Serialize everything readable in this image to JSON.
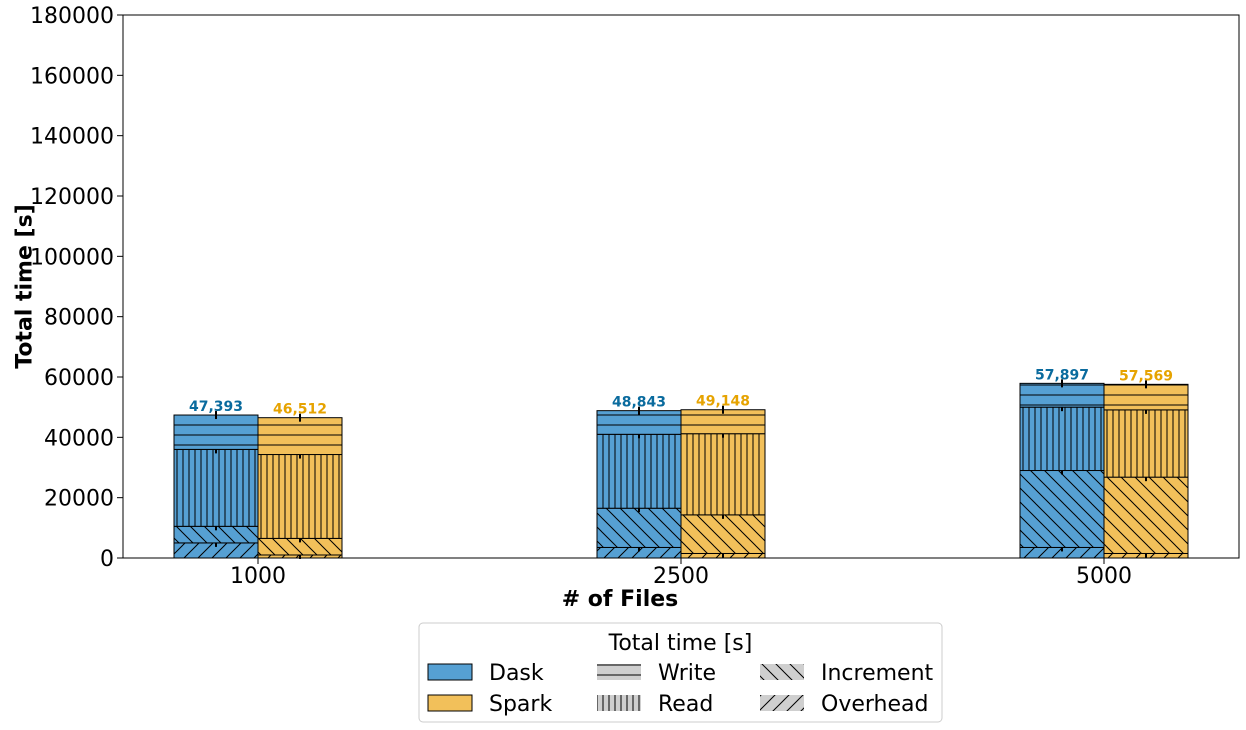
{
  "chart_data": {
    "type": "bar",
    "stacked": true,
    "xlabel": "# of Files",
    "ylabel": "Total time [s]",
    "ylim": [
      0,
      180000
    ],
    "yticks": [
      0,
      20000,
      40000,
      60000,
      80000,
      100000,
      120000,
      140000,
      160000,
      180000
    ],
    "categories": [
      "1000",
      "2500",
      "5000"
    ],
    "grid": false,
    "series": [
      {
        "name": "Dask",
        "color": "#56a0d3",
        "label_color": "#0a6b9e",
        "totals": [
          47393,
          48843,
          57897
        ],
        "total_labels": [
          "47,393",
          "48,843",
          "57,897"
        ],
        "components": {
          "Overhead": [
            5000,
            3500,
            3500
          ],
          "Increment": [
            5500,
            13000,
            25500
          ],
          "Read": [
            25500,
            24500,
            21000
          ],
          "Write": [
            11393,
            7843,
            7897
          ]
        }
      },
      {
        "name": "Spark",
        "color": "#f2c05a",
        "label_color": "#e6a300",
        "totals": [
          46512,
          49148,
          57569
        ],
        "total_labels": [
          "46,512",
          "49,148",
          "57,569"
        ],
        "components": {
          "Overhead": [
            1000,
            1500,
            1500
          ],
          "Increment": [
            5500,
            12800,
            25300
          ],
          "Read": [
            27800,
            26900,
            22300
          ],
          "Write": [
            12212,
            7948,
            8469
          ]
        }
      }
    ],
    "legend": {
      "title": "Total time [s]",
      "placement": "bottom-center",
      "entries": [
        {
          "label": "Dask",
          "kind": "color"
        },
        {
          "label": "Spark",
          "kind": "color"
        },
        {
          "label": "Write",
          "kind": "hatch",
          "hatch": "horizontal"
        },
        {
          "label": "Read",
          "kind": "hatch",
          "hatch": "vertical"
        },
        {
          "label": "Increment",
          "kind": "hatch",
          "hatch": "backslash"
        },
        {
          "label": "Overhead",
          "kind": "hatch",
          "hatch": "slash"
        }
      ]
    }
  }
}
